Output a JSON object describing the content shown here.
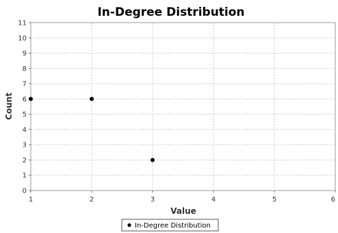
{
  "chart_data": {
    "type": "scatter",
    "title": "In-Degree Distribution",
    "xlabel": "Value",
    "ylabel": "Count",
    "xlim": [
      1,
      6
    ],
    "ylim": [
      0,
      11
    ],
    "x_ticks": [
      "1",
      "2",
      "3",
      "4",
      "5",
      "6"
    ],
    "y_ticks": [
      "0",
      "1",
      "2",
      "3",
      "4",
      "5",
      "6",
      "7",
      "8",
      "9",
      "10",
      "11"
    ],
    "grid": true,
    "legend_position": "bottom",
    "series": [
      {
        "name": "In-Degree Distribution",
        "color": "#000000",
        "points": [
          {
            "x": 1,
            "y": 6
          },
          {
            "x": 2,
            "y": 6
          },
          {
            "x": 3,
            "y": 2
          }
        ]
      }
    ]
  }
}
